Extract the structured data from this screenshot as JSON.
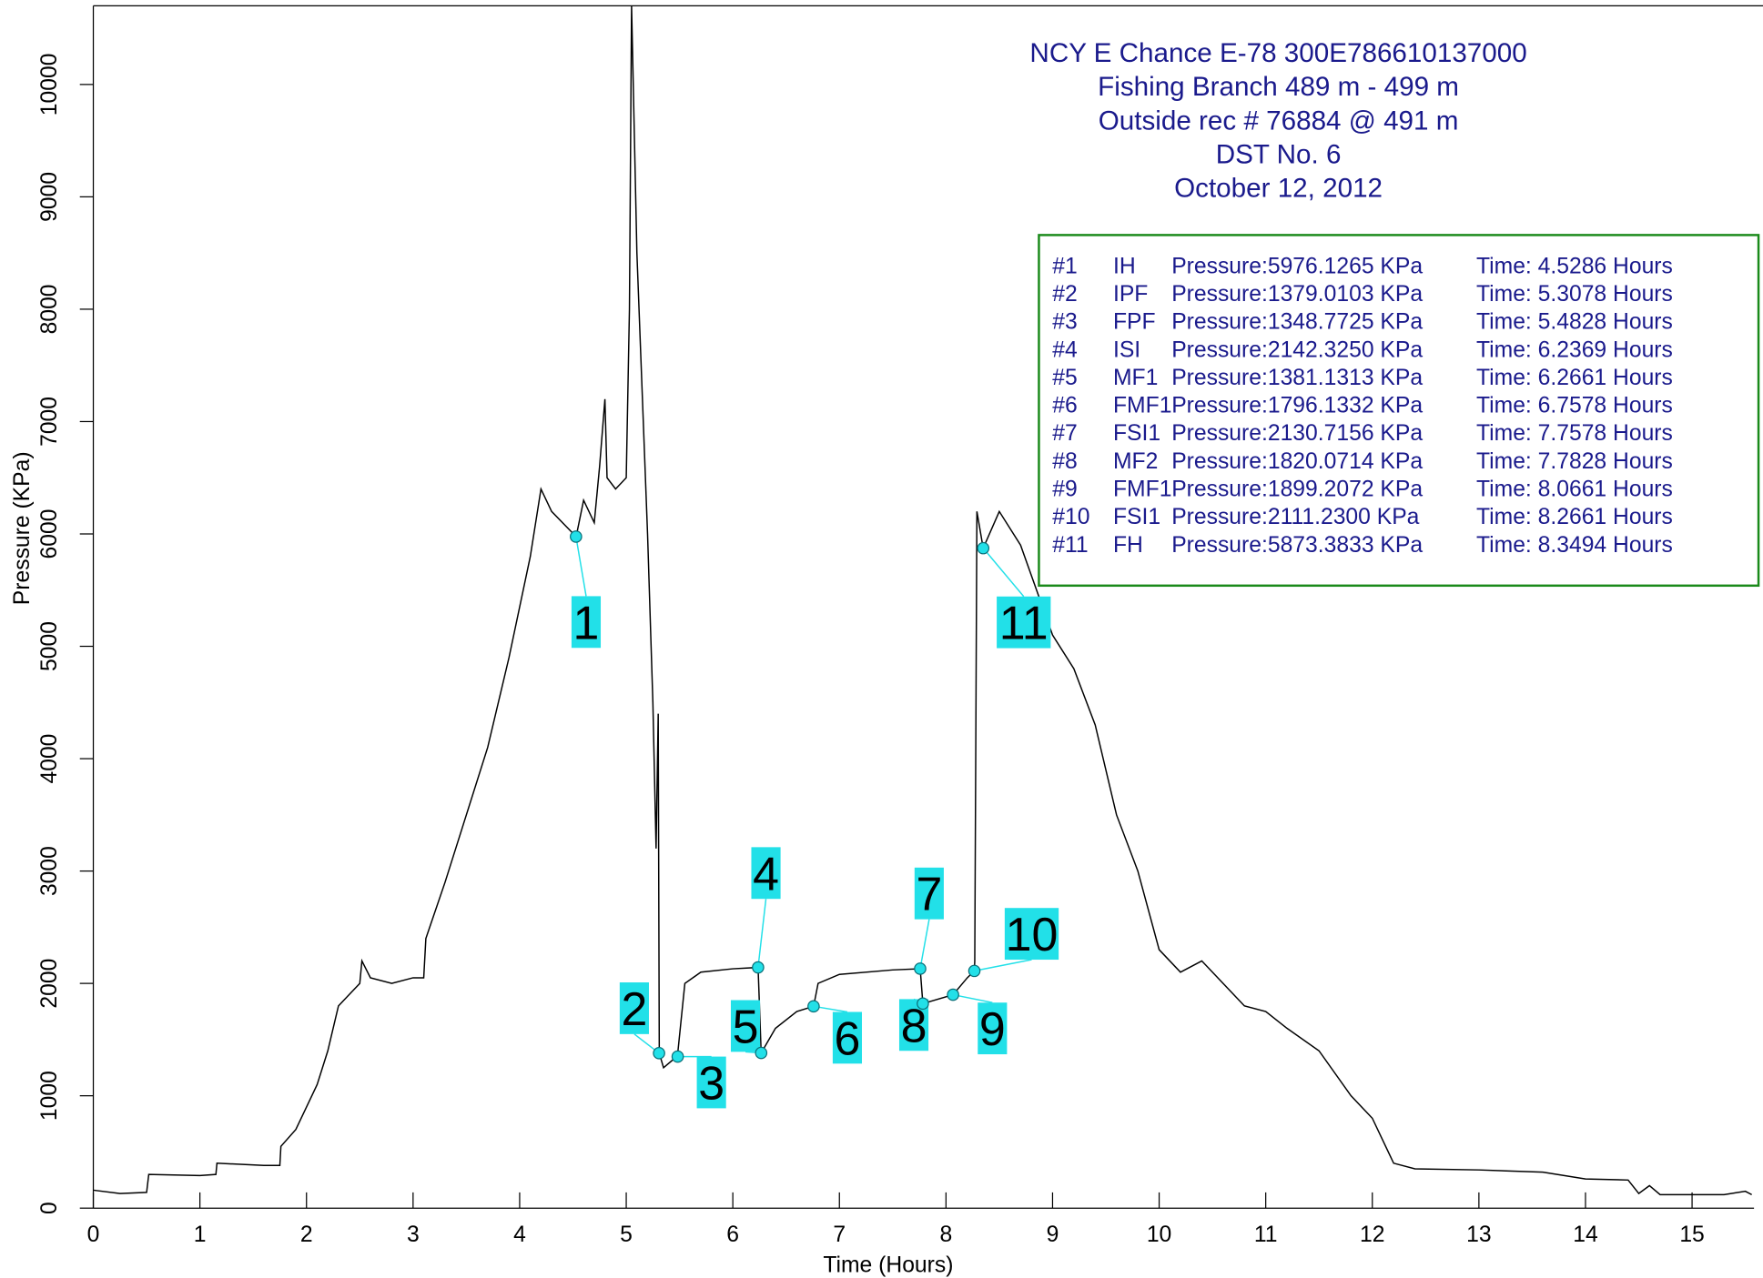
{
  "chart_data": {
    "type": "line",
    "title": [
      "NCY E Chance E-78  300E786610137000",
      "Fishing Branch  489 m - 499 m",
      "Outside rec # 76884 @ 491 m",
      "DST No. 6",
      "October 12, 2012"
    ],
    "x_label": "Time (Hours)",
    "y_label": "Pressure (KPa)",
    "color": "#000000",
    "x": [
      0,
      0.25,
      0.5,
      0.52,
      1.0,
      1.15,
      1.16,
      1.6,
      1.75,
      1.76,
      1.9,
      2.0,
      2.1,
      2.2,
      2.3,
      2.4,
      2.5,
      2.52,
      2.6,
      2.8,
      3.0,
      3.1,
      3.12,
      3.3,
      3.5,
      3.7,
      3.9,
      4.1,
      4.2,
      4.3,
      4.53,
      4.6,
      4.7,
      4.75,
      4.8,
      4.82,
      4.9,
      5.0,
      5.03,
      5.05,
      5.1,
      5.2,
      5.25,
      5.28,
      5.3,
      5.31,
      5.35,
      5.45,
      5.48,
      5.55,
      5.7,
      6.0,
      6.237,
      6.266,
      6.4,
      6.6,
      6.758,
      6.8,
      7.0,
      7.5,
      7.758,
      7.783,
      8.066,
      8.2,
      8.266,
      8.27,
      8.29,
      8.349,
      8.5,
      8.7,
      9.0,
      9.2,
      9.4,
      9.6,
      9.8,
      10.0,
      10.2,
      10.4,
      10.6,
      10.8,
      11.0,
      11.2,
      11.5,
      11.8,
      12.0,
      12.2,
      12.4,
      13.0,
      13.6,
      14.0,
      14.4,
      14.5,
      14.6,
      14.7,
      15.0,
      15.3,
      15.5,
      15.56
    ],
    "values": [
      160,
      130,
      140,
      300,
      290,
      300,
      400,
      380,
      380,
      550,
      700,
      900,
      1100,
      1400,
      1800,
      1900,
      2000,
      2200,
      2050,
      2000,
      2050,
      2050,
      2400,
      2900,
      3500,
      4100,
      4900,
      5800,
      6400,
      6200,
      5976,
      6300,
      6100,
      6600,
      7200,
      6500,
      6400,
      6500,
      8000,
      10700,
      8500,
      6000,
      4500,
      3200,
      4400,
      1379,
      1250,
      1330,
      1349,
      2000,
      2100,
      2130,
      2142,
      1381,
      1600,
      1750,
      1796,
      2000,
      2080,
      2120,
      2130,
      1820,
      1899,
      2050,
      2111,
      2200,
      6200,
      5873,
      6200,
      5900,
      5100,
      4800,
      4300,
      3500,
      3000,
      2300,
      2100,
      2200,
      2000,
      1800,
      1750,
      1600,
      1400,
      1000,
      800,
      400,
      350,
      340,
      320,
      260,
      250,
      130,
      200,
      120,
      120,
      120,
      150,
      120
    ],
    "xlim": [
      0,
      15.56
    ],
    "ylim": [
      0,
      10700
    ],
    "xticks": [
      0,
      1,
      2,
      3,
      4,
      5,
      6,
      7,
      8,
      9,
      10,
      11,
      12,
      13,
      14,
      15
    ],
    "yticks": [
      0,
      1000,
      2000,
      3000,
      4000,
      5000,
      6000,
      7000,
      8000,
      9000,
      10000
    ],
    "marker_color": "#22e0e8",
    "markers": [
      {
        "label": "1",
        "x": 4.5286,
        "y": 5976.1265
      },
      {
        "label": "2",
        "x": 5.3078,
        "y": 1379.0103
      },
      {
        "label": "3",
        "x": 5.4828,
        "y": 1348.7725
      },
      {
        "label": "4",
        "x": 6.2369,
        "y": 2142.325
      },
      {
        "label": "5",
        "x": 6.2661,
        "y": 1381.1313
      },
      {
        "label": "6",
        "x": 6.7578,
        "y": 1796.1332
      },
      {
        "label": "7",
        "x": 7.7578,
        "y": 2130.7156
      },
      {
        "label": "8",
        "x": 7.7828,
        "y": 1820.0714
      },
      {
        "label": "9",
        "x": 8.0661,
        "y": 1899.2072
      },
      {
        "label": "10",
        "x": 8.2661,
        "y": 2111.23
      },
      {
        "label": "11",
        "x": 8.3494,
        "y": 5873.3833
      }
    ],
    "table": [
      [
        "#1",
        "IH",
        "Pressure:5976.1265 KPa",
        "Time: 4.5286 Hours"
      ],
      [
        "#2",
        "IPF",
        "Pressure:1379.0103 KPa",
        "Time: 5.3078 Hours"
      ],
      [
        "#3",
        "FPF",
        "Pressure:1348.7725 KPa",
        "Time: 5.4828 Hours"
      ],
      [
        "#4",
        "ISI",
        "Pressure:2142.3250 KPa",
        "Time: 6.2369 Hours"
      ],
      [
        "#5",
        "MF1",
        "Pressure:1381.1313 KPa",
        "Time: 6.2661 Hours"
      ],
      [
        "#6",
        "FMF1",
        "Pressure:1796.1332 KPa",
        "Time: 6.7578 Hours"
      ],
      [
        "#7",
        "FSI1",
        "Pressure:2130.7156 KPa",
        "Time: 7.7578 Hours"
      ],
      [
        "#8",
        "MF2",
        "Pressure:1820.0714 KPa",
        "Time: 7.7828 Hours"
      ],
      [
        "#9",
        "FMF1",
        "Pressure:1899.2072 KPa",
        "Time: 8.0661 Hours"
      ],
      [
        "#10",
        "FSI1",
        "Pressure:2111.2300 KPa",
        "Time: 8.2661 Hours"
      ],
      [
        "#11",
        "FH",
        "Pressure:5873.3833 KPa",
        "Time: 8.3494 Hours"
      ]
    ]
  }
}
